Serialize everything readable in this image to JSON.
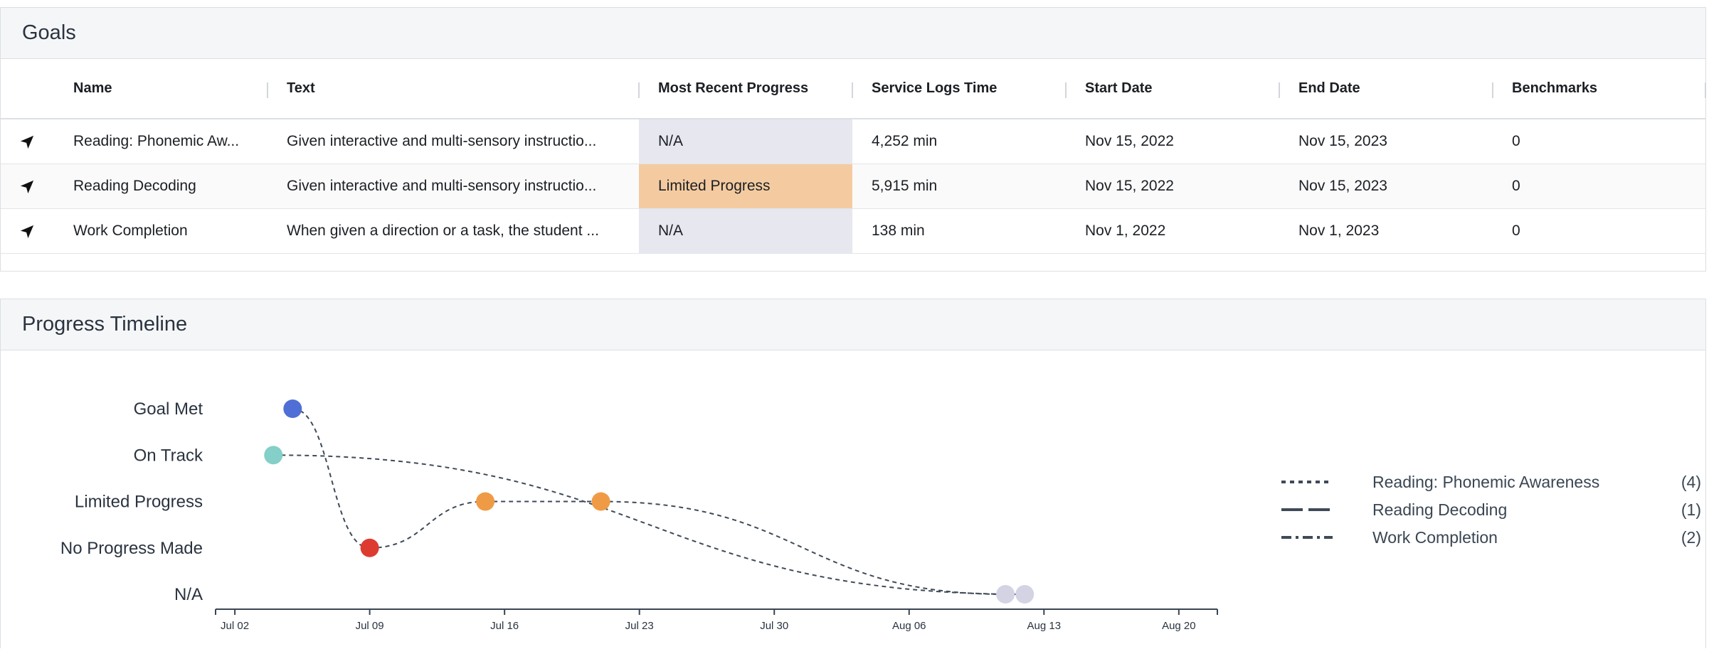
{
  "goals_panel": {
    "title": "Goals",
    "columns": [
      "Name",
      "Text",
      "Most Recent Progress",
      "Service Logs Time",
      "Start Date",
      "End Date",
      "Benchmarks"
    ],
    "rows": [
      {
        "name": "Reading: Phonemic Aw...",
        "text": "Given interactive and multi-sensory instructio...",
        "progress": "N/A",
        "service_time": "4,252 min",
        "start_date": "Nov 15, 2022",
        "end_date": "Nov 15, 2023",
        "benchmarks": "0"
      },
      {
        "name": "Reading Decoding",
        "text": "Given interactive and multi-sensory instructio...",
        "progress": "Limited Progress",
        "service_time": "5,915 min",
        "start_date": "Nov 15, 2022",
        "end_date": "Nov 15, 2023",
        "benchmarks": "0"
      },
      {
        "name": "Work Completion",
        "text": "When given a direction or a task, the student ...",
        "progress": "N/A",
        "service_time": "138 min",
        "start_date": "Nov 1, 2022",
        "end_date": "Nov 1, 2023",
        "benchmarks": "0"
      }
    ],
    "progress_colors": {
      "N/A": "#e6e7ef",
      "Limited Progress": "#f4cba0"
    }
  },
  "timeline_panel": {
    "title": "Progress Timeline",
    "legend": [
      {
        "label": "Reading: Phonemic Awareness",
        "count": "(4)",
        "dash": "dotted"
      },
      {
        "label": "Reading Decoding",
        "count": "(1)",
        "dash": "long-dash"
      },
      {
        "label": "Work Completion",
        "count": "(2)",
        "dash": "dash-dot"
      }
    ]
  },
  "chart_data": {
    "type": "scatter",
    "title": "Progress Timeline",
    "y_categories": [
      "N/A",
      "No Progress Made",
      "Limited Progress",
      "On Track",
      "Goal Met"
    ],
    "x_ticks": [
      "Jul 02",
      "Jul 09",
      "Jul 16",
      "Jul 23",
      "Jul 30",
      "Aug 06",
      "Aug 13",
      "Aug 20"
    ],
    "x_range_days": [
      -1,
      51
    ],
    "status_colors": {
      "Goal Met": "#4f6fd6",
      "On Track": "#84cfc8",
      "Limited Progress": "#ef9b45",
      "No Progress Made": "#de3b30",
      "N/A": "#d3d3e3"
    },
    "series": [
      {
        "name": "Reading: Phonemic Awareness",
        "points": [
          {
            "day": 3,
            "status": "Goal Met"
          },
          {
            "day": 7,
            "status": "No Progress Made"
          },
          {
            "day": 13,
            "status": "Limited Progress"
          },
          {
            "day": 40,
            "status": "N/A"
          }
        ]
      },
      {
        "name": "Reading Decoding",
        "points": [
          {
            "day": 19,
            "status": "Limited Progress"
          }
        ]
      },
      {
        "name": "Work Completion",
        "points": [
          {
            "day": 2,
            "status": "On Track"
          },
          {
            "day": 41,
            "status": "N/A"
          }
        ]
      }
    ],
    "connections": [
      {
        "from": [
          3,
          "Goal Met"
        ],
        "to": [
          7,
          "No Progress Made"
        ]
      },
      {
        "from": [
          7,
          "No Progress Made"
        ],
        "to": [
          13,
          "Limited Progress"
        ]
      },
      {
        "from": [
          13,
          "Limited Progress"
        ],
        "to": [
          19,
          "Limited Progress"
        ]
      },
      {
        "from": [
          19,
          "Limited Progress"
        ],
        "to": [
          40,
          "N/A"
        ]
      },
      {
        "from": [
          2,
          "On Track"
        ],
        "to": [
          41,
          "N/A"
        ]
      }
    ]
  }
}
